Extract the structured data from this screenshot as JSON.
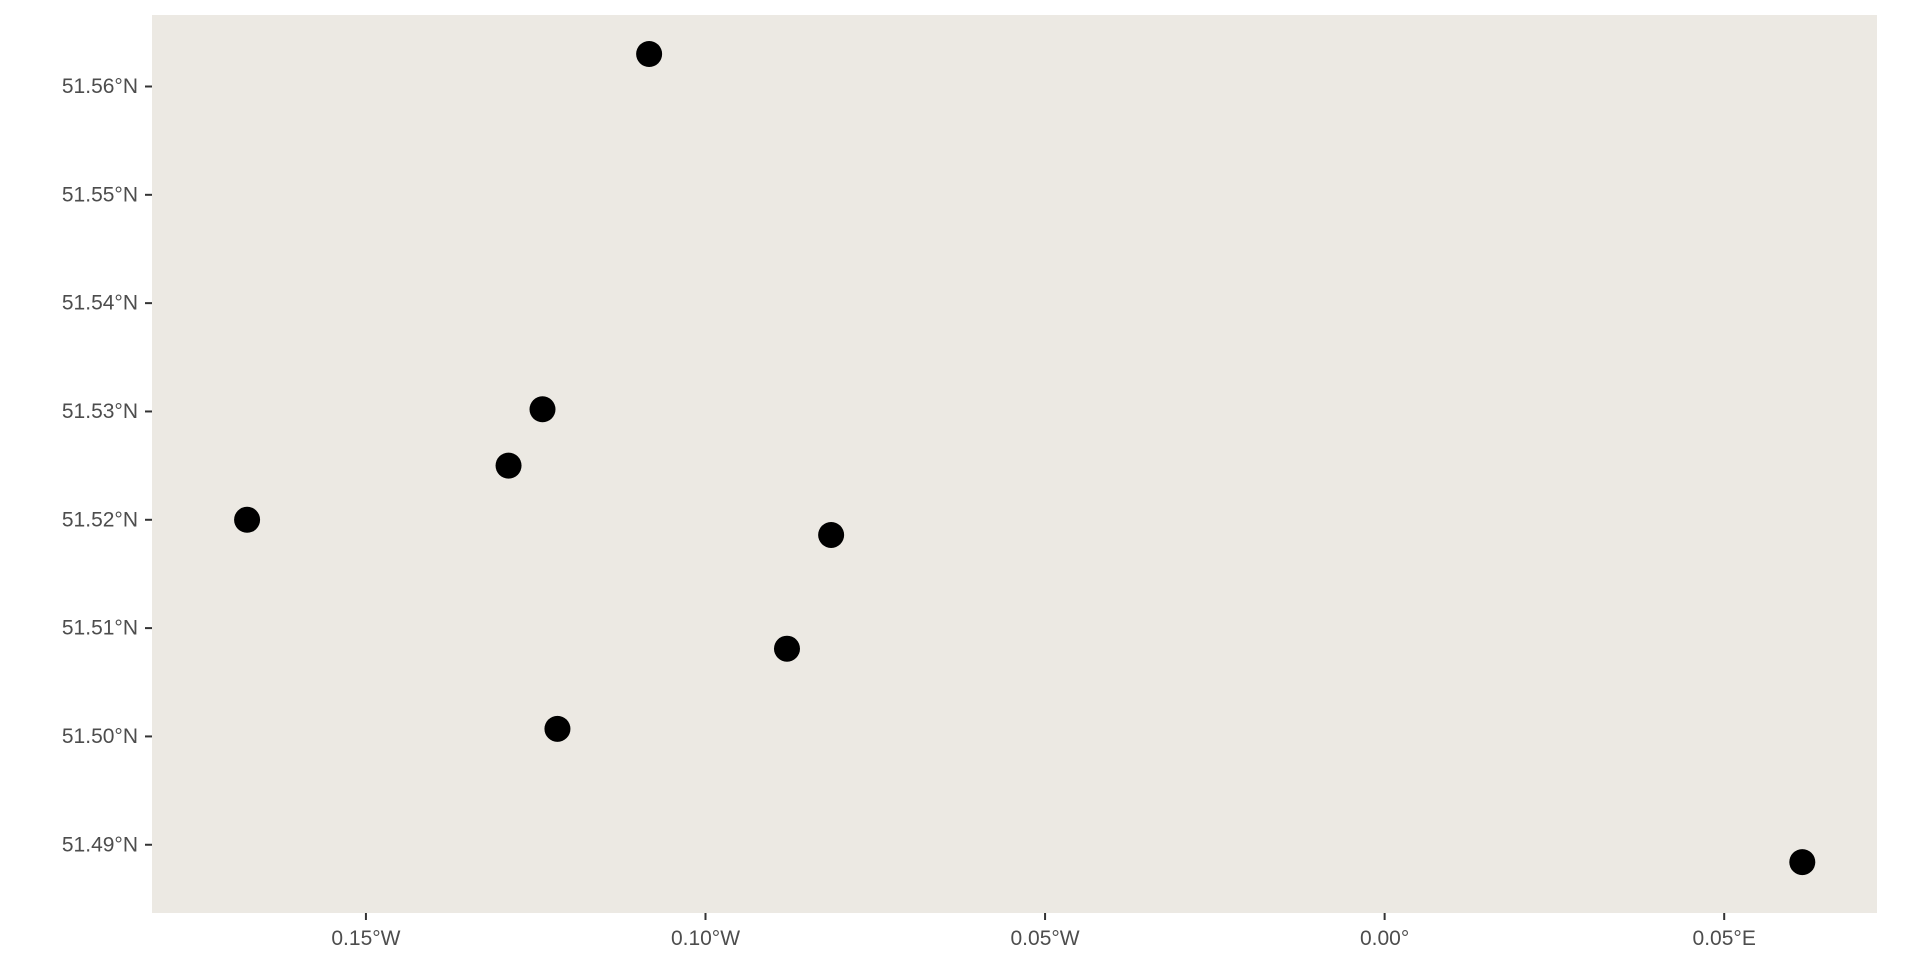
{
  "chart_data": {
    "type": "scatter",
    "title": "",
    "xlabel": "",
    "ylabel": "",
    "xlim": [
      -0.1815,
      0.0725
    ],
    "ylim": [
      51.4837,
      51.5666
    ],
    "grid": false,
    "legend": "none",
    "x_ticks": [
      {
        "value": -0.15,
        "label": "0.15°W"
      },
      {
        "value": -0.1,
        "label": "0.10°W"
      },
      {
        "value": -0.05,
        "label": "0.05°W"
      },
      {
        "value": 0.0,
        "label": "0.00°"
      },
      {
        "value": 0.05,
        "label": "0.05°E"
      }
    ],
    "y_ticks": [
      {
        "value": 51.56,
        "label": "51.56°N"
      },
      {
        "value": 51.55,
        "label": "51.55°N"
      },
      {
        "value": 51.54,
        "label": "51.54°N"
      },
      {
        "value": 51.53,
        "label": "51.53°N"
      },
      {
        "value": 51.52,
        "label": "51.52°N"
      },
      {
        "value": 51.51,
        "label": "51.51°N"
      },
      {
        "value": 51.5,
        "label": "51.50°N"
      },
      {
        "value": 51.49,
        "label": "51.49°N"
      }
    ],
    "points": [
      {
        "x": -0.1083,
        "y": 51.563
      },
      {
        "x": -0.124,
        "y": 51.5302
      },
      {
        "x": -0.129,
        "y": 51.525
      },
      {
        "x": -0.1675,
        "y": 51.52
      },
      {
        "x": -0.0815,
        "y": 51.5186
      },
      {
        "x": -0.088,
        "y": 51.5081
      },
      {
        "x": -0.1218,
        "y": 51.5007
      },
      {
        "x": 0.0615,
        "y": 51.4884
      }
    ]
  },
  "colors": {
    "panel": "#ece9e3",
    "point": "#000000",
    "tick": "#333333",
    "text": "#4d4d4d"
  }
}
